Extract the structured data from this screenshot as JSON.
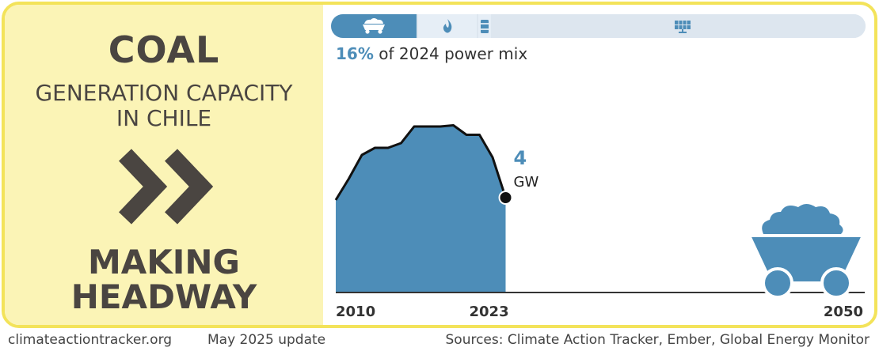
{
  "header": {
    "title": "COAL",
    "subtitle_line1": "GENERATION CAPACITY",
    "subtitle_line2": "IN CHILE",
    "status_line1": "MAKING",
    "status_line2": "HEADWAY"
  },
  "icons": {
    "status": "double-chevron-right-icon",
    "mix_segments": [
      "coal-icon",
      "gas-flame-icon",
      "oil-barrel-icon",
      "solar-panel-icon"
    ],
    "cart": "coal-cart-icon"
  },
  "power_mix": {
    "share_value": "16%",
    "share_text": "of 2024 power mix"
  },
  "chart_data": {
    "type": "area",
    "title": "",
    "x": [
      2010,
      2011,
      2012,
      2013,
      2014,
      2015,
      2016,
      2017,
      2018,
      2019,
      2020,
      2021,
      2022,
      2023
    ],
    "values": [
      3.9,
      4.8,
      5.8,
      6.1,
      6.1,
      6.3,
      7.0,
      7.0,
      7.0,
      7.05,
      6.65,
      6.65,
      5.7,
      4
    ],
    "xlim": [
      2010,
      2050
    ],
    "x_tick_labels": [
      "2010",
      "2023",
      "2050"
    ],
    "end_label_value": "4",
    "end_label_unit": "GW",
    "colors": {
      "area": "#4d8db8",
      "line": "#111111",
      "axis": "#333333"
    }
  },
  "footer": {
    "site": "climateactiontracker.org",
    "update": "May 2025 update",
    "sources": "Sources: Climate Action Tracker, Ember, Global Energy Monitor"
  },
  "colors": {
    "frame": "#f3e35a",
    "panel": "#fbf4b6",
    "accent": "#4d8db8",
    "mix_track": "#dde6ef",
    "text_dark": "#4a4541"
  }
}
